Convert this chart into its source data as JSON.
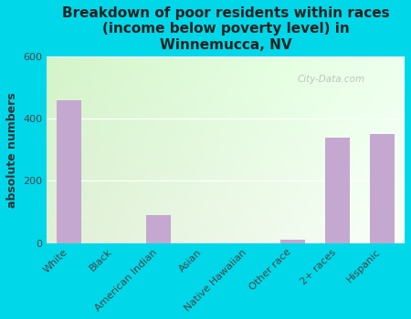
{
  "title": "Breakdown of poor residents within races\n(income below poverty level) in\nWinnemucca, NV",
  "ylabel": "absolute numbers",
  "categories": [
    "White",
    "Black",
    "American Indian",
    "Asian",
    "Native Hawaiian",
    "Other race",
    "2+ races",
    "Hispanic"
  ],
  "values": [
    460,
    0,
    90,
    0,
    0,
    10,
    340,
    350
  ],
  "bar_color": "#c4a8d0",
  "bar_edge_color": "#b090c0",
  "ylim": [
    0,
    600
  ],
  "yticks": [
    0,
    200,
    400,
    600
  ],
  "background_outer": "#00d8ea",
  "bg_color_topleft": "#d8eec8",
  "bg_color_topright": "#eef8f0",
  "bg_color_bottomleft": "#e8f4dc",
  "bg_color_bottomright": "#f8fcf4",
  "grid_color": "#e0e8d8",
  "title_fontsize": 11,
  "ylabel_fontsize": 9,
  "tick_fontsize": 8,
  "watermark": "City-Data.com"
}
